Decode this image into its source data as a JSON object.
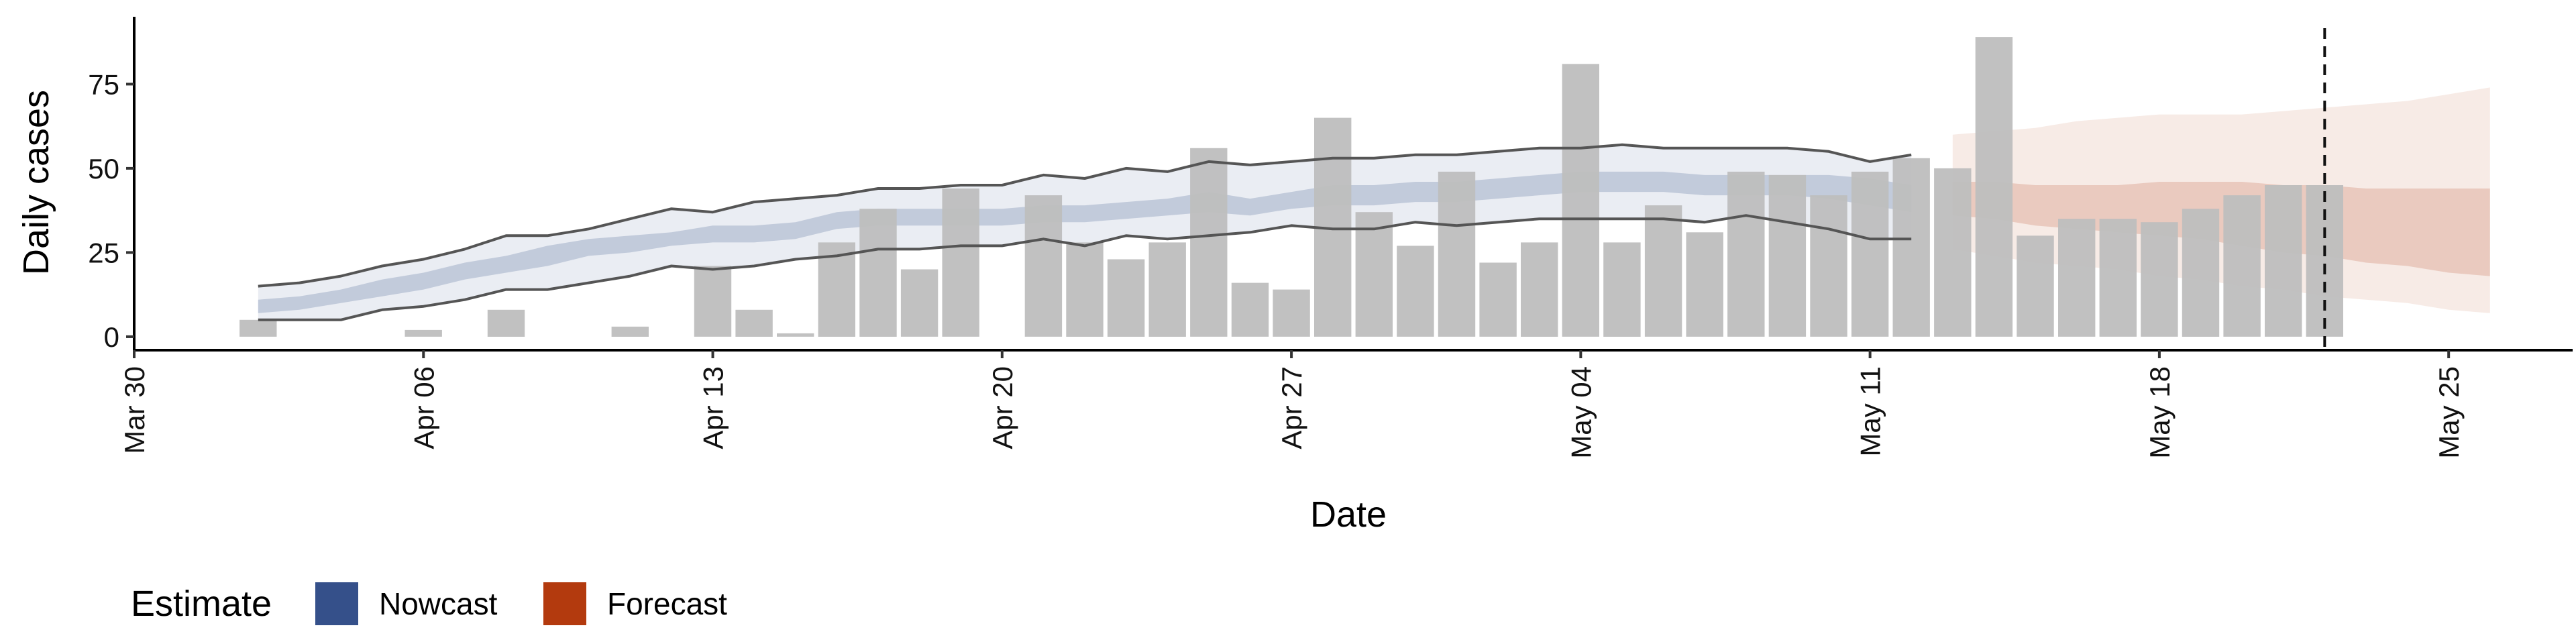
{
  "chart_data": {
    "type": "bar",
    "xlabel": "Date",
    "ylabel": "Daily cases",
    "xlim": [
      "2020-03-30",
      "2020-05-28"
    ],
    "ylim": [
      -4,
      95
    ],
    "x_ticks": [
      {
        "date": "2020-03-30",
        "label": "Mar 30"
      },
      {
        "date": "2020-04-06",
        "label": "Apr 06"
      },
      {
        "date": "2020-04-13",
        "label": "Apr 13"
      },
      {
        "date": "2020-04-20",
        "label": "Apr 20"
      },
      {
        "date": "2020-04-27",
        "label": "Apr 27"
      },
      {
        "date": "2020-05-04",
        "label": "May 04"
      },
      {
        "date": "2020-05-11",
        "label": "May 11"
      },
      {
        "date": "2020-05-18",
        "label": "May 18"
      },
      {
        "date": "2020-05-25",
        "label": "May 25"
      }
    ],
    "y_ticks": [
      0,
      25,
      50,
      75
    ],
    "forecast_cutoff_date": "2020-05-22",
    "observed_cases": {
      "dates": [
        "2020-04-02",
        "2020-04-03",
        "2020-04-04",
        "2020-04-05",
        "2020-04-06",
        "2020-04-07",
        "2020-04-08",
        "2020-04-09",
        "2020-04-10",
        "2020-04-11",
        "2020-04-12",
        "2020-04-13",
        "2020-04-14",
        "2020-04-15",
        "2020-04-16",
        "2020-04-17",
        "2020-04-18",
        "2020-04-19",
        "2020-04-20",
        "2020-04-21",
        "2020-04-22",
        "2020-04-23",
        "2020-04-24",
        "2020-04-25",
        "2020-04-26",
        "2020-04-27",
        "2020-04-28",
        "2020-04-29",
        "2020-04-30",
        "2020-05-01",
        "2020-05-02",
        "2020-05-03",
        "2020-05-04",
        "2020-05-05",
        "2020-05-06",
        "2020-05-07",
        "2020-05-08",
        "2020-05-09",
        "2020-05-10",
        "2020-05-11",
        "2020-05-12",
        "2020-05-13",
        "2020-05-14",
        "2020-05-15",
        "2020-05-16",
        "2020-05-17",
        "2020-05-18",
        "2020-05-19",
        "2020-05-20",
        "2020-05-21",
        "2020-05-22"
      ],
      "values": [
        5,
        0,
        0,
        0,
        2,
        0,
        8,
        0,
        0,
        3,
        0,
        21,
        8,
        1,
        28,
        38,
        20,
        44,
        0,
        42,
        28,
        23,
        28,
        56,
        16,
        14,
        65,
        37,
        27,
        49,
        22,
        28,
        81,
        28,
        39,
        31,
        49,
        48,
        42,
        49,
        53,
        50,
        89,
        30,
        35,
        35,
        34,
        38,
        42,
        45,
        45
      ]
    },
    "nowcast": {
      "name": "Nowcast",
      "color": "#35508a",
      "dates": [
        "2020-04-02",
        "2020-04-03",
        "2020-04-04",
        "2020-04-05",
        "2020-04-06",
        "2020-04-07",
        "2020-04-08",
        "2020-04-09",
        "2020-04-10",
        "2020-04-11",
        "2020-04-12",
        "2020-04-13",
        "2020-04-14",
        "2020-04-15",
        "2020-04-16",
        "2020-04-17",
        "2020-04-18",
        "2020-04-19",
        "2020-04-20",
        "2020-04-21",
        "2020-04-22",
        "2020-04-23",
        "2020-04-24",
        "2020-04-25",
        "2020-04-26",
        "2020-04-27",
        "2020-04-28",
        "2020-04-29",
        "2020-04-30",
        "2020-05-01",
        "2020-05-02",
        "2020-05-03",
        "2020-05-04",
        "2020-05-05",
        "2020-05-06",
        "2020-05-07",
        "2020-05-08",
        "2020-05-09",
        "2020-05-10",
        "2020-05-11",
        "2020-05-12"
      ],
      "lower90": [
        5,
        5,
        5,
        8,
        9,
        11,
        14,
        14,
        16,
        18,
        21,
        20,
        21,
        23,
        24,
        26,
        26,
        27,
        27,
        29,
        27,
        30,
        29,
        30,
        31,
        33,
        32,
        32,
        34,
        33,
        34,
        35,
        35,
        35,
        35,
        34,
        36,
        34,
        32,
        29,
        29
      ],
      "upper90": [
        15,
        16,
        18,
        21,
        23,
        26,
        30,
        30,
        32,
        35,
        38,
        37,
        40,
        41,
        42,
        44,
        44,
        45,
        45,
        48,
        47,
        50,
        49,
        52,
        51,
        52,
        53,
        53,
        54,
        54,
        55,
        56,
        56,
        57,
        56,
        56,
        56,
        56,
        55,
        52,
        54
      ],
      "lower50": [
        7,
        8,
        10,
        12,
        14,
        17,
        19,
        21,
        24,
        25,
        27,
        28,
        28,
        29,
        32,
        33,
        33,
        33,
        33,
        34,
        34,
        35,
        36,
        37,
        36,
        38,
        39,
        39,
        40,
        40,
        41,
        42,
        43,
        43,
        43,
        42,
        42,
        42,
        41,
        39,
        37
      ],
      "upper50": [
        11,
        12,
        14,
        17,
        19,
        22,
        24,
        27,
        29,
        30,
        31,
        33,
        33,
        34,
        37,
        38,
        38,
        38,
        38,
        39,
        39,
        40,
        41,
        43,
        41,
        43,
        45,
        45,
        46,
        46,
        47,
        48,
        49,
        49,
        49,
        48,
        48,
        48,
        48,
        47,
        45
      ]
    },
    "forecast": {
      "name": "Forecast",
      "color": "#b33a0e",
      "dates": [
        "2020-05-13",
        "2020-05-14",
        "2020-05-15",
        "2020-05-16",
        "2020-05-17",
        "2020-05-18",
        "2020-05-19",
        "2020-05-20",
        "2020-05-21",
        "2020-05-22",
        "2020-05-23",
        "2020-05-24",
        "2020-05-25",
        "2020-05-26"
      ],
      "lower90": [
        26,
        24,
        22,
        21,
        20,
        18,
        17,
        15,
        14,
        12,
        11,
        10,
        8,
        7
      ],
      "upper90": [
        60,
        61,
        62,
        64,
        65,
        66,
        66,
        66,
        67,
        68,
        69,
        70,
        72,
        74
      ],
      "lower50": [
        36,
        35,
        33,
        32,
        31,
        30,
        29,
        27,
        25,
        24,
        22,
        21,
        19,
        18
      ],
      "upper50": [
        46,
        46,
        45,
        45,
        45,
        46,
        46,
        46,
        45,
        45,
        44,
        44,
        44,
        44
      ]
    },
    "legend": {
      "title": "Estimate",
      "items": [
        "Nowcast",
        "Forecast"
      ],
      "position": "bottom-left"
    },
    "colors": {
      "bars": "#bebebe",
      "nowcast_band": "#35508a",
      "nowcast_outline": "#555555",
      "forecast_band": "#b33a0e",
      "cutoff_line": "#111111"
    }
  }
}
